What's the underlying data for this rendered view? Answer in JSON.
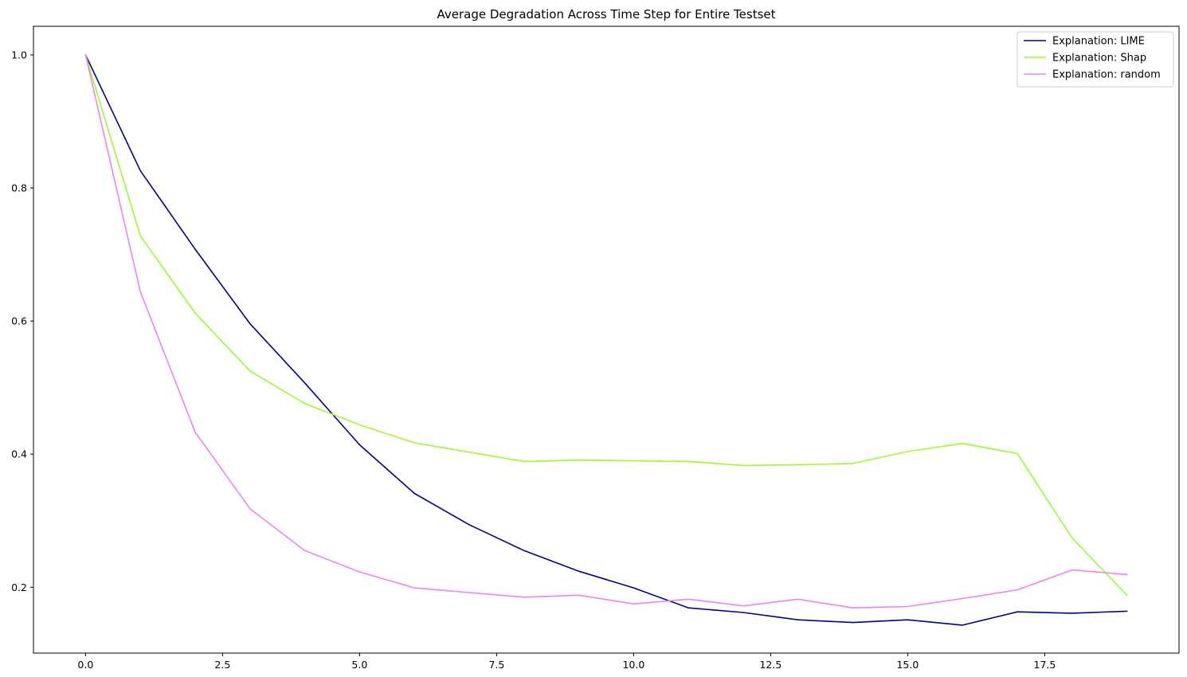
{
  "chart_data": {
    "type": "line",
    "title": "Average Degradation Across Time Step for Entire Testset",
    "xlabel": "",
    "ylabel": "",
    "xlim": [
      -0.95,
      19.95
    ],
    "ylim": [
      0.101,
      1.043
    ],
    "xticks": [
      0.0,
      2.5,
      5.0,
      7.5,
      10.0,
      12.5,
      15.0,
      17.5
    ],
    "xtick_labels": [
      "0.0",
      "2.5",
      "5.0",
      "7.5",
      "10.0",
      "12.5",
      "15.0",
      "17.5"
    ],
    "yticks": [
      0.2,
      0.4,
      0.6,
      0.8,
      1.0
    ],
    "ytick_labels": [
      "0.2",
      "0.4",
      "0.6",
      "0.8",
      "1.0"
    ],
    "grid": false,
    "legend_position": "top-right",
    "x": [
      0,
      1,
      2,
      3,
      4,
      5,
      6,
      7,
      8,
      9,
      10,
      11,
      12,
      13,
      14,
      15,
      16,
      17,
      18,
      19
    ],
    "series": [
      {
        "name": "Explanation: LIME",
        "color": "#00008b",
        "values": [
          1.0,
          0.826,
          0.708,
          0.596,
          0.507,
          0.414,
          0.341,
          0.294,
          0.255,
          0.224,
          0.199,
          0.169,
          0.162,
          0.151,
          0.147,
          0.151,
          0.143,
          0.163,
          0.161,
          0.164
        ]
      },
      {
        "name": "Explanation: Shap",
        "color": "#9afa32",
        "values": [
          1.0,
          0.728,
          0.612,
          0.525,
          0.476,
          0.444,
          0.417,
          0.403,
          0.389,
          0.391,
          0.39,
          0.389,
          0.383,
          0.384,
          0.386,
          0.404,
          0.416,
          0.401,
          0.274,
          0.188
        ]
      },
      {
        "name": "Explanation: random",
        "color": "#ee82ee",
        "values": [
          1.0,
          0.644,
          0.433,
          0.318,
          0.255,
          0.223,
          0.199,
          0.192,
          0.185,
          0.188,
          0.175,
          0.182,
          0.172,
          0.182,
          0.169,
          0.171,
          0.183,
          0.196,
          0.226,
          0.219
        ]
      }
    ]
  }
}
